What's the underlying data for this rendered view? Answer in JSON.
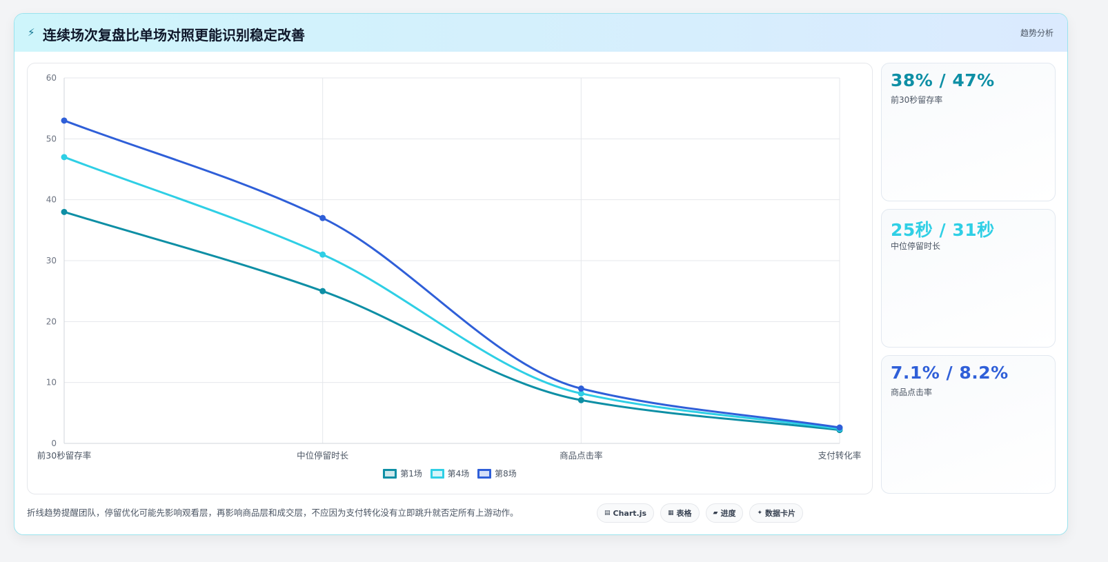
{
  "header": {
    "icon": "lightning-icon",
    "title": "连续场次复盘比单场对照更能识别稳定改善",
    "tag": "趋势分析"
  },
  "chart_data": {
    "type": "line",
    "categories": [
      "前30秒留存率",
      "中位停留时长",
      "商品点击率",
      "支付转化率"
    ],
    "series": [
      {
        "name": "第1场",
        "values": [
          38,
          25,
          7.1,
          2.2
        ],
        "color": "#0e8fa5"
      },
      {
        "name": "第4场",
        "values": [
          47,
          31,
          8.2,
          2.4
        ],
        "color": "#2fcfe5"
      },
      {
        "name": "第8场",
        "values": [
          53,
          37,
          9.0,
          2.6
        ],
        "color": "#2f5fd8"
      }
    ],
    "ylim": [
      0,
      60
    ],
    "yticks": [
      "0",
      "10",
      "20",
      "30",
      "40",
      "50",
      "60"
    ],
    "grid": true,
    "legend_position": "bottom"
  },
  "cards": [
    {
      "value": "38% / 47%",
      "label": "前30秒留存率",
      "color": "#0e8fa5"
    },
    {
      "value": "25秒 / 31秒",
      "label": "中位停留时长",
      "color": "#2fcfe5"
    },
    {
      "value": "7.1% / 8.2%",
      "label": "商品点击率",
      "color": "#2f5fd8"
    }
  ],
  "footer": {
    "note": "折线趋势提醒团队，停留优化可能先影响观看层，再影响商品层和成交层，不应因为支付转化没有立即跳升就否定所有上游动作。",
    "chips": [
      {
        "icon": "chart-icon",
        "glyph": "▤",
        "label": "Chart.js"
      },
      {
        "icon": "table-icon",
        "glyph": "▦",
        "label": "表格"
      },
      {
        "icon": "progress-icon",
        "glyph": "▰",
        "label": "进度"
      },
      {
        "icon": "card-icon",
        "glyph": "✦",
        "label": "数据卡片"
      }
    ]
  }
}
